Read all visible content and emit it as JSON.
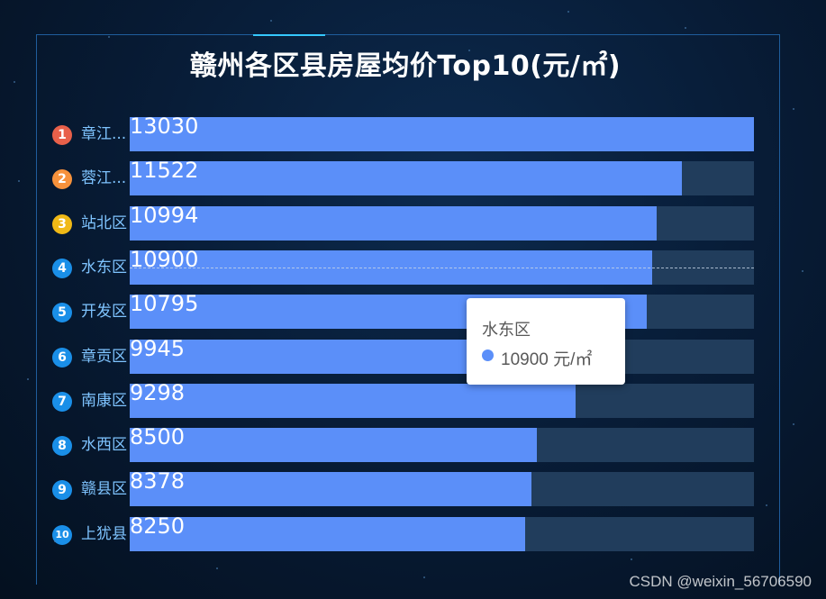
{
  "chart_data": {
    "type": "bar",
    "orientation": "horizontal",
    "title": "赣州各区县房屋均价Top10(元/㎡)",
    "ranks": [
      "1",
      "2",
      "3",
      "4",
      "5",
      "6",
      "7",
      "8",
      "9",
      "10"
    ],
    "categories": [
      "章江...",
      "蓉江...",
      "站北区",
      "水东区",
      "开发区",
      "章贡区",
      "南康区",
      "水西区",
      "赣县区",
      "上犹县"
    ],
    "values": [
      13030,
      11522,
      10994,
      10900,
      10795,
      9945,
      9298,
      8500,
      8378,
      8250
    ],
    "xlim": [
      0,
      13030
    ],
    "series_color": "#5b8ff9",
    "track_color": "#213d5c",
    "badge_colors": [
      "#e8604a",
      "#f7923c",
      "#f0b916",
      "#1a8fe8",
      "#1a8fe8",
      "#1a8fe8",
      "#1a8fe8",
      "#1a8fe8",
      "#1a8fe8",
      "#1a8fe8"
    ]
  },
  "tooltip": {
    "title": "水东区",
    "value": "10900 元/㎡"
  },
  "watermark": "CSDN @weixin_56706590"
}
